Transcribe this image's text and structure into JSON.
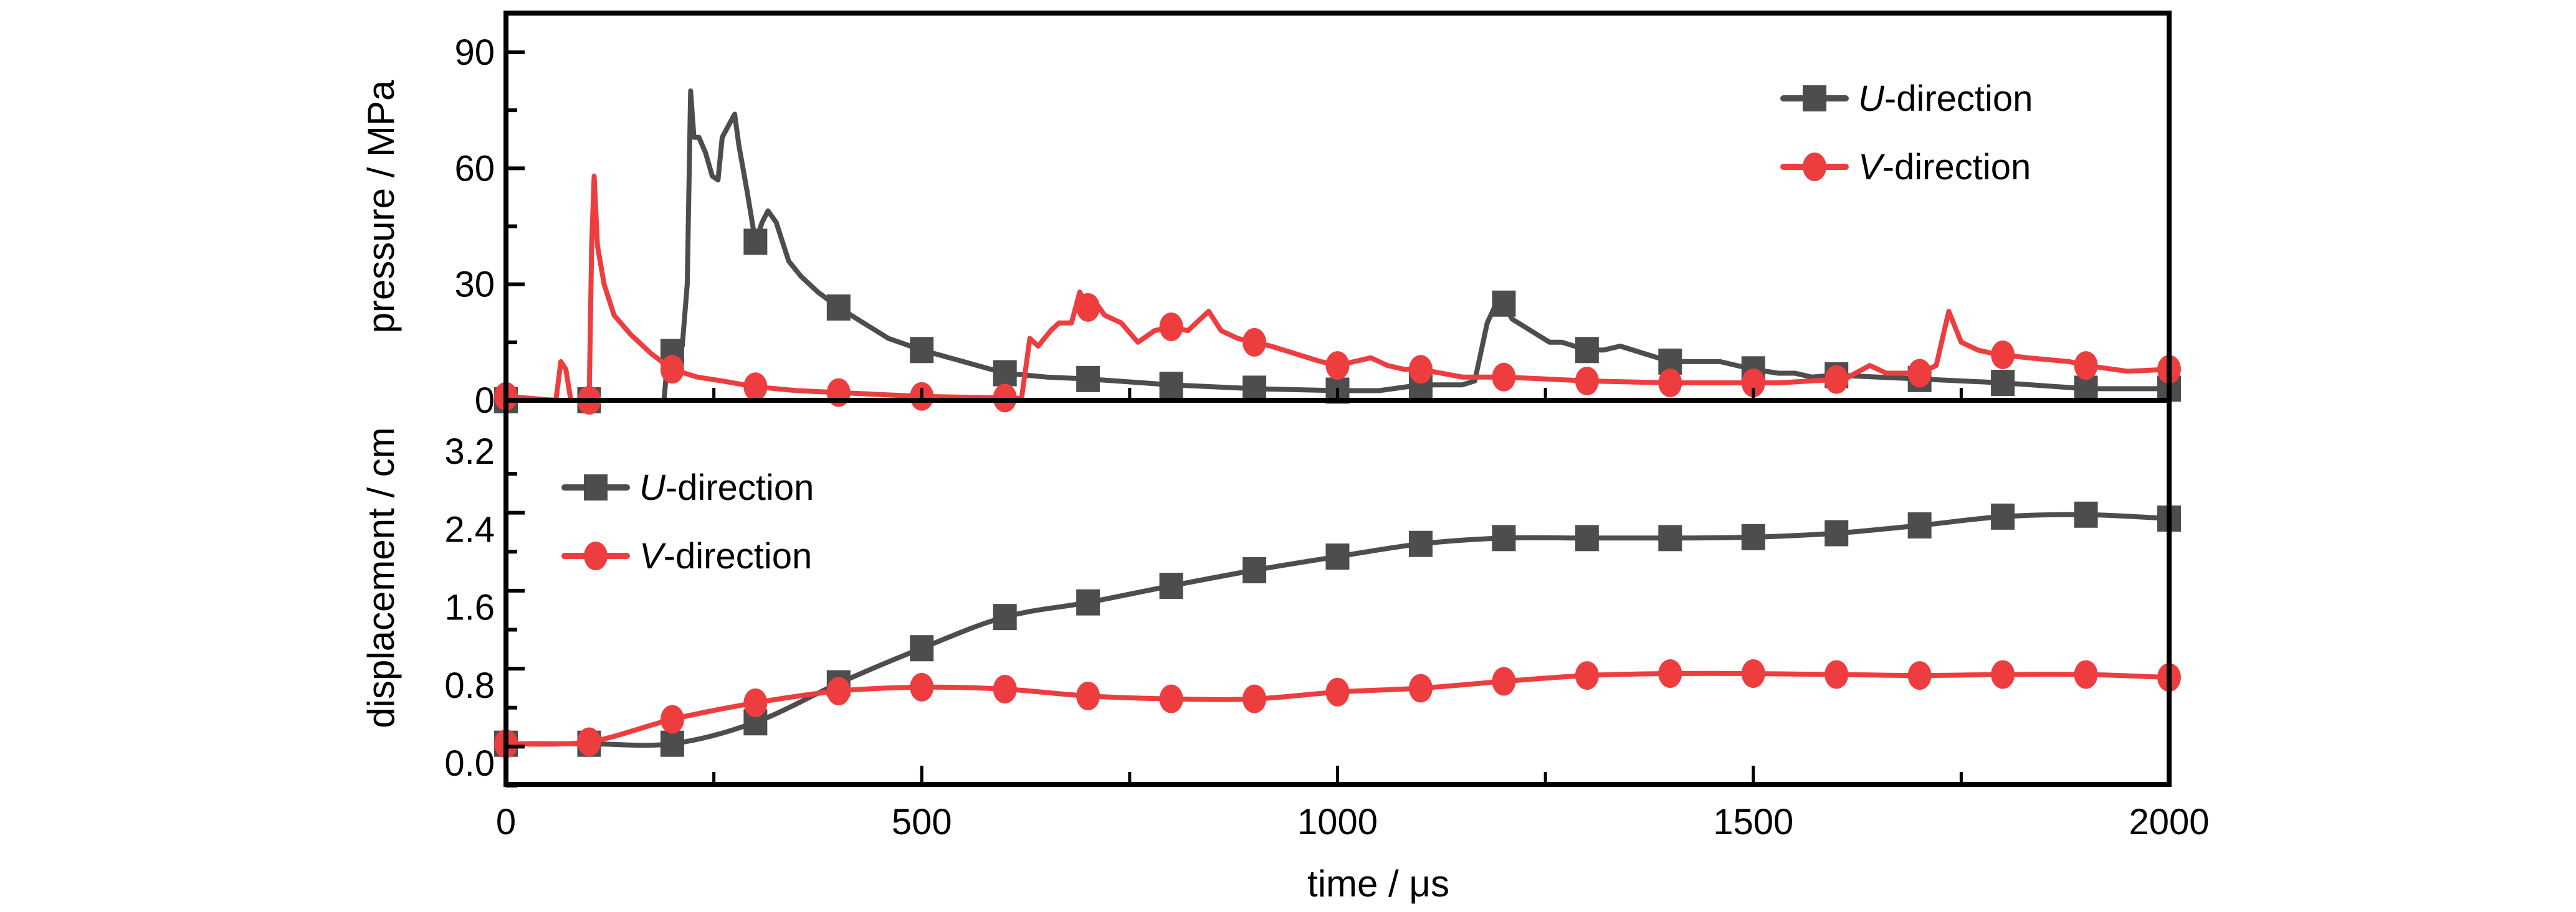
{
  "chart_data": [
    {
      "type": "line",
      "panel": "top",
      "title": "",
      "xlabel": "",
      "ylabel": "pressure / MPa",
      "xlim": [
        0,
        2000
      ],
      "ylim": [
        0,
        100
      ],
      "yticks": [
        0,
        30,
        60,
        90
      ],
      "grid": false,
      "legend_placement": "top-right",
      "series": [
        {
          "name": "U-direction",
          "name_italic": "U",
          "name_rest": "-direction",
          "color": "#4d4d4d",
          "marker": "square",
          "points": [
            [
              0,
              0
            ],
            [
              190,
              0
            ],
            [
              195,
              12
            ],
            [
              205,
              13
            ],
            [
              212,
              14
            ],
            [
              218,
              30
            ],
            [
              222,
              80
            ],
            [
              226,
              68
            ],
            [
              232,
              68
            ],
            [
              240,
              64
            ],
            [
              248,
              58
            ],
            [
              255,
              57
            ],
            [
              260,
              68
            ],
            [
              265,
              70
            ],
            [
              270,
              72
            ],
            [
              275,
              74
            ],
            [
              280,
              66
            ],
            [
              290,
              54
            ],
            [
              300,
              41
            ],
            [
              308,
              46
            ],
            [
              315,
              49
            ],
            [
              325,
              46
            ],
            [
              340,
              36
            ],
            [
              355,
              32
            ],
            [
              375,
              28
            ],
            [
              400,
              24
            ],
            [
              430,
              20
            ],
            [
              460,
              16
            ],
            [
              500,
              13
            ],
            [
              550,
              10
            ],
            [
              600,
              7
            ],
            [
              650,
              6
            ],
            [
              700,
              5.5
            ],
            [
              800,
              4
            ],
            [
              900,
              3
            ],
            [
              1000,
              2.5
            ],
            [
              1050,
              2.5
            ],
            [
              1100,
              4
            ],
            [
              1150,
              4
            ],
            [
              1165,
              5
            ],
            [
              1180,
              20
            ],
            [
              1195,
              27
            ],
            [
              1210,
              21
            ],
            [
              1225,
              19
            ],
            [
              1240,
              17
            ],
            [
              1255,
              15
            ],
            [
              1270,
              15
            ],
            [
              1300,
              13
            ],
            [
              1320,
              13
            ],
            [
              1340,
              14
            ],
            [
              1370,
              12
            ],
            [
              1400,
              10
            ],
            [
              1430,
              10
            ],
            [
              1460,
              10
            ],
            [
              1500,
              8
            ],
            [
              1530,
              7
            ],
            [
              1550,
              7
            ],
            [
              1570,
              6
            ],
            [
              1600,
              6.5
            ],
            [
              1650,
              6
            ],
            [
              1700,
              5.5
            ],
            [
              1800,
              4.5
            ],
            [
              1900,
              3
            ],
            [
              2000,
              3
            ]
          ],
          "markers_at": [
            0,
            100,
            200,
            300,
            400,
            500,
            600,
            700,
            800,
            900,
            1000,
            1100,
            1200,
            1300,
            1400,
            1500,
            1600,
            1700,
            1800,
            1900,
            2000
          ]
        },
        {
          "name": "V-direction",
          "name_italic": "V",
          "name_rest": "-direction",
          "color": "#ee3d3f",
          "marker": "circle",
          "points": [
            [
              0,
              1
            ],
            [
              60,
              0
            ],
            [
              66,
              10
            ],
            [
              72,
              8
            ],
            [
              78,
              0
            ],
            [
              100,
              0
            ],
            [
              103,
              40
            ],
            [
              106,
              58
            ],
            [
              110,
              40
            ],
            [
              118,
              30
            ],
            [
              130,
              22
            ],
            [
              150,
              17
            ],
            [
              175,
              12
            ],
            [
              200,
              8
            ],
            [
              230,
              6
            ],
            [
              260,
              5
            ],
            [
              300,
              3.5
            ],
            [
              350,
              2.5
            ],
            [
              400,
              2
            ],
            [
              450,
              1.5
            ],
            [
              500,
              1
            ],
            [
              550,
              0.8
            ],
            [
              620,
              0.5
            ],
            [
              630,
              16
            ],
            [
              640,
              14
            ],
            [
              655,
              18
            ],
            [
              665,
              20
            ],
            [
              680,
              20
            ],
            [
              690,
              28
            ],
            [
              700,
              24
            ],
            [
              710,
              25
            ],
            [
              720,
              22
            ],
            [
              740,
              20
            ],
            [
              760,
              15
            ],
            [
              780,
              18
            ],
            [
              800,
              19
            ],
            [
              820,
              18
            ],
            [
              845,
              23
            ],
            [
              860,
              18
            ],
            [
              880,
              16
            ],
            [
              900,
              15
            ],
            [
              920,
              14
            ],
            [
              950,
              12
            ],
            [
              980,
              10
            ],
            [
              1000,
              9
            ],
            [
              1020,
              10
            ],
            [
              1040,
              11
            ],
            [
              1060,
              9
            ],
            [
              1080,
              8
            ],
            [
              1100,
              8
            ],
            [
              1150,
              6
            ],
            [
              1200,
              6
            ],
            [
              1250,
              5.5
            ],
            [
              1300,
              5
            ],
            [
              1400,
              4.5
            ],
            [
              1500,
              4.5
            ],
            [
              1530,
              4.5
            ],
            [
              1570,
              5
            ],
            [
              1610,
              5.5
            ],
            [
              1640,
              9
            ],
            [
              1660,
              7
            ],
            [
              1700,
              7
            ],
            [
              1720,
              9
            ],
            [
              1735,
              23
            ],
            [
              1750,
              15
            ],
            [
              1770,
              13
            ],
            [
              1790,
              12
            ],
            [
              1830,
              11
            ],
            [
              1880,
              10
            ],
            [
              1900,
              9
            ],
            [
              1950,
              7.5
            ],
            [
              2000,
              8
            ]
          ],
          "markers_at": [
            0,
            100,
            200,
            300,
            400,
            500,
            600,
            700,
            800,
            900,
            1000,
            1100,
            1200,
            1300,
            1400,
            1500,
            1600,
            1700,
            1800,
            1900,
            2000
          ]
        }
      ]
    },
    {
      "type": "line",
      "panel": "bottom",
      "title": "",
      "xlabel": "time / μs",
      "ylabel": "displacement / cm",
      "xlim": [
        0,
        2000
      ],
      "ylim": [
        -0.15,
        3.45
      ],
      "xticks": [
        0,
        500,
        1000,
        1500,
        2000
      ],
      "yticks": [
        0.0,
        0.8,
        1.6,
        2.4,
        3.2
      ],
      "ytick_labels": [
        "0.0",
        "0.8",
        "1.6",
        "2.4",
        "3.2"
      ],
      "grid": false,
      "legend_placement": "top-left",
      "series": [
        {
          "name": "U-direction",
          "name_italic": "U",
          "name_rest": "-direction",
          "color": "#4d4d4d",
          "marker": "square",
          "x": [
            0,
            100,
            200,
            300,
            400,
            500,
            600,
            700,
            800,
            900,
            1000,
            1100,
            1200,
            1300,
            1400,
            1500,
            1600,
            1700,
            1800,
            1900,
            2000
          ],
          "y": [
            0.2,
            0.2,
            0.2,
            0.42,
            0.82,
            1.18,
            1.5,
            1.65,
            1.82,
            1.98,
            2.12,
            2.25,
            2.31,
            2.31,
            2.31,
            2.32,
            2.36,
            2.44,
            2.53,
            2.55,
            2.51
          ]
        },
        {
          "name": "V-direction",
          "name_italic": "V",
          "name_rest": "-direction",
          "color": "#ee3d3f",
          "marker": "circle",
          "x": [
            0,
            100,
            200,
            300,
            400,
            500,
            600,
            700,
            800,
            900,
            1000,
            1100,
            1200,
            1300,
            1400,
            1500,
            1600,
            1700,
            1800,
            1900,
            2000
          ],
          "y": [
            0.2,
            0.22,
            0.45,
            0.62,
            0.74,
            0.78,
            0.76,
            0.69,
            0.66,
            0.66,
            0.73,
            0.77,
            0.84,
            0.9,
            0.92,
            0.92,
            0.91,
            0.9,
            0.91,
            0.91,
            0.88
          ]
        }
      ]
    }
  ]
}
